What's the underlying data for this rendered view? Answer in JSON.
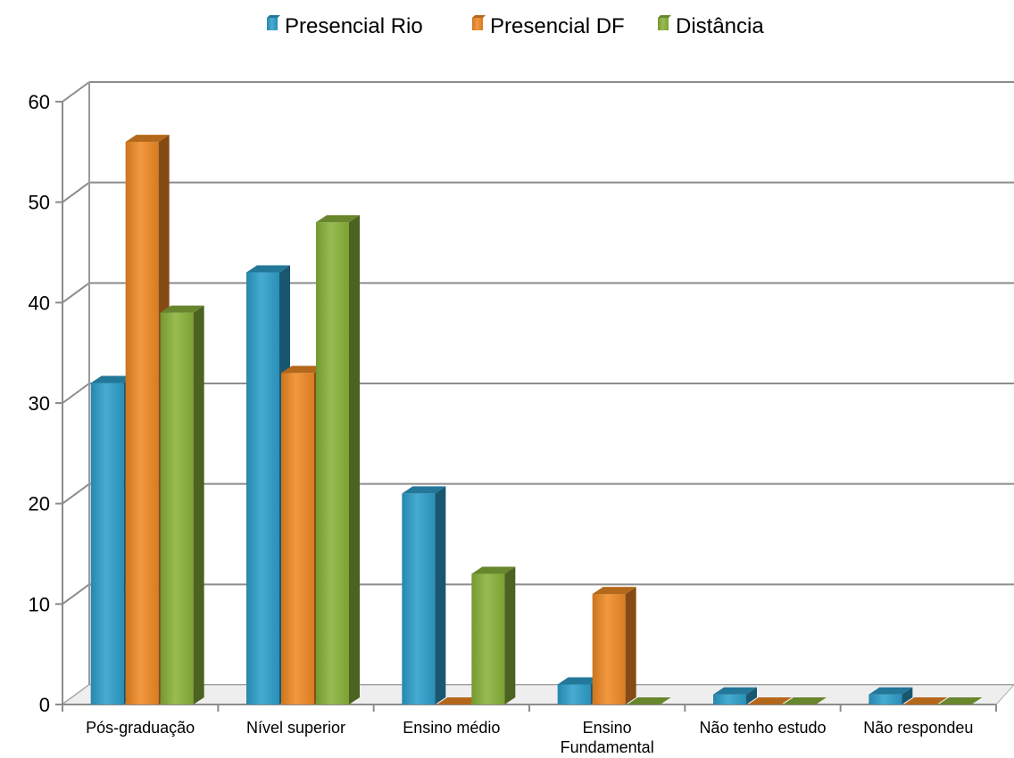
{
  "chart_data": {
    "type": "bar",
    "style": "3d-clustered-column",
    "categories": [
      "Pós-graduação",
      "Nível superior",
      "Ensino médio",
      "Ensino Fundamental",
      "Não tenho estudo",
      "Não respondeu"
    ],
    "series": [
      {
        "name": "Presencial Rio",
        "values": [
          32,
          43,
          21,
          2,
          1,
          1
        ],
        "color": "#2e9fcb"
      },
      {
        "name": "Presencial DF",
        "values": [
          56,
          33,
          0,
          11,
          0,
          0
        ],
        "color": "#f08a25"
      },
      {
        "name": "Distância",
        "values": [
          39,
          48,
          13,
          0,
          0,
          0
        ],
        "color": "#8ab33a"
      }
    ],
    "y_ticks": [
      "0",
      "10",
      "20",
      "30",
      "40",
      "50",
      "60"
    ],
    "ylim": [
      0,
      60
    ],
    "grid": true,
    "legend_position": "top-center",
    "title": "",
    "xlabel": "",
    "ylabel": ""
  }
}
